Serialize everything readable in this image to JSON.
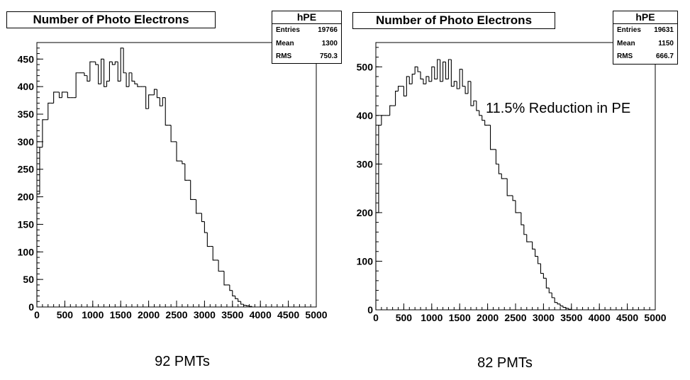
{
  "chart_data": [
    {
      "type": "histogram",
      "title": "Number of Photo Electrons",
      "stats": {
        "name": "hPE",
        "entries_label": "Entries",
        "entries": "19766",
        "mean_label": "Mean",
        "mean": "1300",
        "rms_label": "RMS",
        "rms": "750.3"
      },
      "xlim": [
        0,
        5000
      ],
      "ylim": [
        0,
        480
      ],
      "xticks": [
        0,
        500,
        1000,
        1500,
        2000,
        2500,
        3000,
        3500,
        4000,
        4500,
        5000
      ],
      "yticks": [
        0,
        50,
        100,
        150,
        200,
        250,
        300,
        350,
        400,
        450
      ],
      "bin_width": 50,
      "values": [
        205,
        290,
        340,
        340,
        370,
        370,
        390,
        390,
        380,
        390,
        390,
        380,
        380,
        380,
        425,
        425,
        425,
        420,
        410,
        445,
        445,
        440,
        405,
        450,
        400,
        410,
        445,
        440,
        445,
        410,
        470,
        425,
        400,
        425,
        410,
        405,
        400,
        400,
        400,
        360,
        385,
        385,
        395,
        380,
        365,
        380,
        330,
        330,
        300,
        300,
        265,
        265,
        260,
        230,
        230,
        195,
        195,
        170,
        170,
        155,
        135,
        110,
        110,
        85,
        85,
        65,
        65,
        40,
        40,
        30,
        20,
        15,
        10,
        5,
        3,
        2,
        1,
        0
      ],
      "caption": "92 PMTs"
    },
    {
      "type": "histogram",
      "title": "Number of Photo Electrons",
      "stats": {
        "name": "hPE",
        "entries_label": "Entries",
        "entries": "19631",
        "mean_label": "Mean",
        "mean": "1150",
        "rms_label": "RMS",
        "rms": "666.7"
      },
      "xlim": [
        0,
        5000
      ],
      "ylim": [
        0,
        550
      ],
      "xticks": [
        0,
        500,
        1000,
        1500,
        2000,
        2500,
        3000,
        3500,
        4000,
        4500,
        5000
      ],
      "yticks": [
        0,
        100,
        200,
        300,
        400,
        500
      ],
      "bin_width": 50,
      "values": [
        200,
        380,
        400,
        400,
        400,
        420,
        420,
        450,
        460,
        460,
        440,
        480,
        465,
        485,
        500,
        490,
        475,
        465,
        480,
        470,
        500,
        475,
        515,
        470,
        510,
        475,
        515,
        460,
        470,
        455,
        495,
        460,
        445,
        470,
        420,
        430,
        410,
        400,
        390,
        380,
        380,
        330,
        330,
        300,
        280,
        270,
        270,
        235,
        235,
        225,
        200,
        200,
        175,
        155,
        140,
        140,
        125,
        110,
        95,
        75,
        65,
        45,
        35,
        25,
        15,
        12,
        8,
        5,
        3,
        1,
        0
      ],
      "annotation": "11.5% Reduction in PE",
      "caption": "82 PMTs"
    }
  ]
}
